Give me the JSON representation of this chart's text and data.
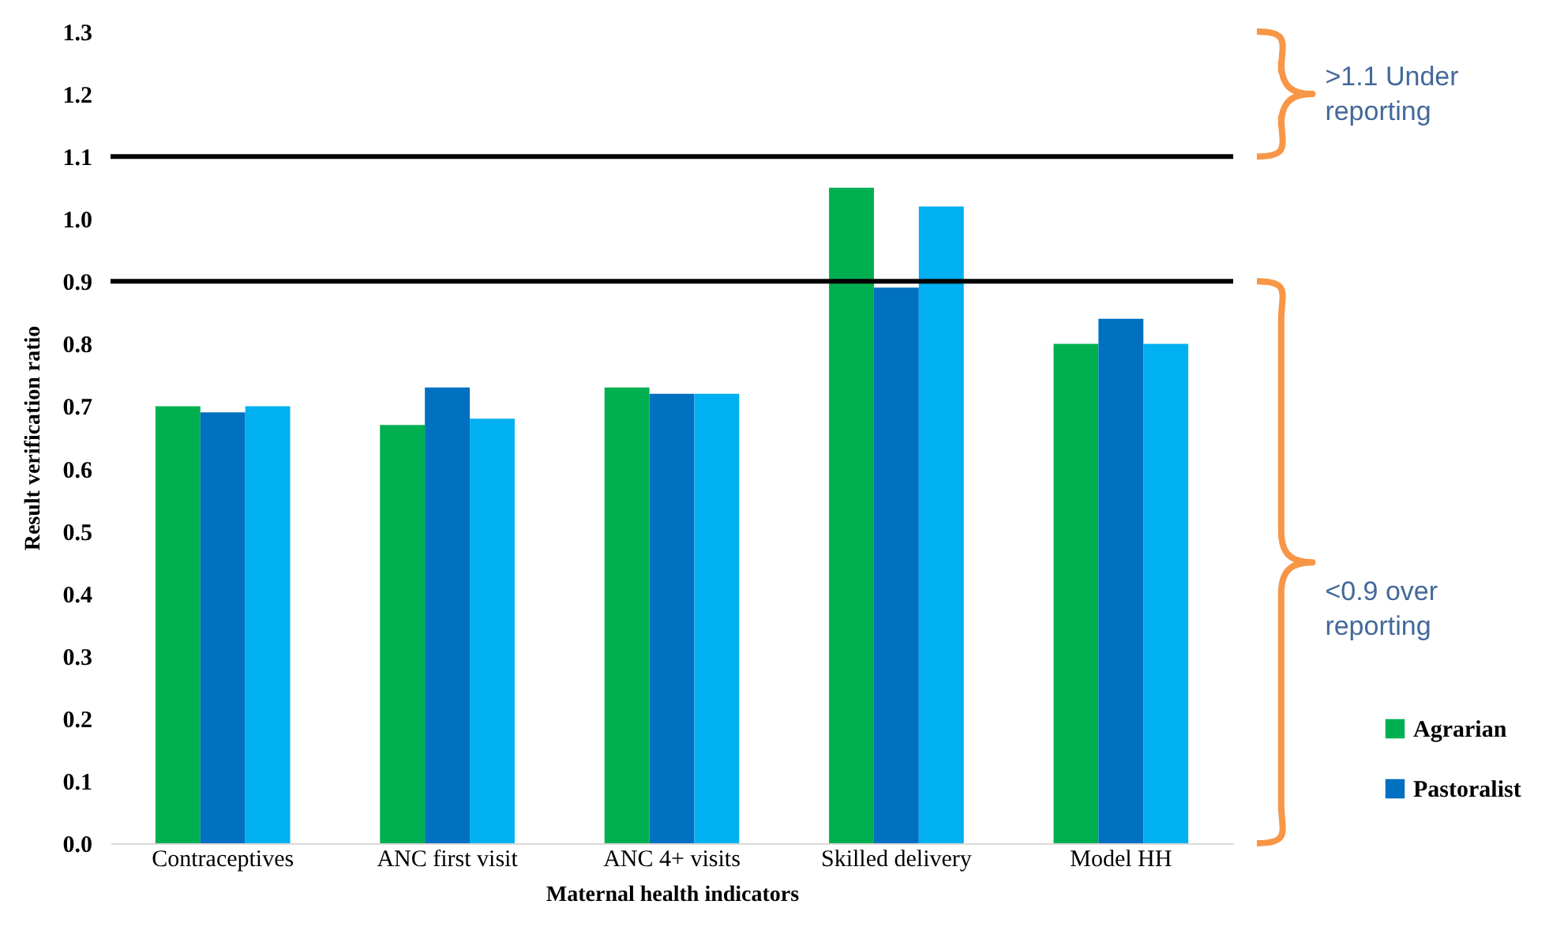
{
  "chart_data": {
    "type": "bar",
    "xlabel": "Maternal health indicators",
    "ylabel": "Result verification ratio",
    "categories": [
      "Contraceptives",
      "ANC first visit",
      "ANC 4+ visits",
      "Skilled delivery",
      "Model HH"
    ],
    "series": [
      {
        "name": "Agrarian",
        "color": "#00b050",
        "values": [
          0.7,
          0.67,
          0.73,
          1.05,
          0.8
        ]
      },
      {
        "name": "Pastoralist",
        "color": "#0070c0",
        "values": [
          0.69,
          0.73,
          0.72,
          0.89,
          0.84
        ]
      },
      {
        "color": "#00b0f0",
        "values": [
          0.7,
          0.68,
          0.72,
          1.02,
          0.8
        ]
      }
    ],
    "ylim": [
      0,
      1.3
    ],
    "yticks": [
      {
        "value": 0,
        "label": "0.0"
      },
      0.1,
      0.2,
      0.3,
      0.4,
      0.5,
      0.6,
      0.7,
      0.8,
      0.9,
      {
        "value": 1,
        "label": "1.0"
      },
      1.1,
      1.2,
      1.3
    ],
    "ref_lines": [
      {
        "axis": "y",
        "value": 1.1,
        "color": "#000000"
      },
      {
        "axis": "y",
        "value": 0.9,
        "color": "#000000"
      }
    ],
    "annotations": [
      ">1.1 Under reporting",
      "<0.9 over reporting"
    ],
    "legend": "bottom right",
    "grid": false
  }
}
